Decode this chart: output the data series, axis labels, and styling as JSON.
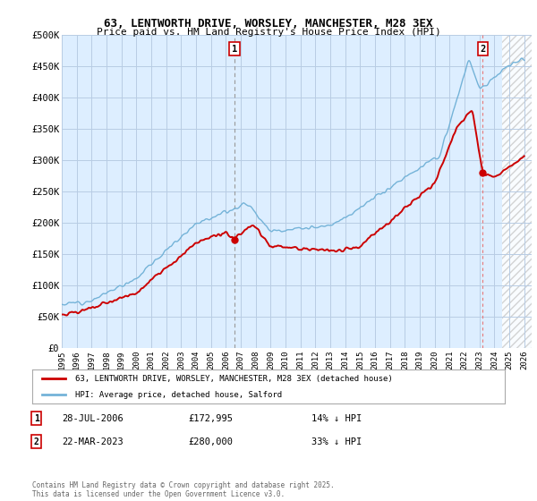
{
  "title": "63, LENTWORTH DRIVE, WORSLEY, MANCHESTER, M28 3EX",
  "subtitle": "Price paid vs. HM Land Registry's House Price Index (HPI)",
  "legend_label_red": "63, LENTWORTH DRIVE, WORSLEY, MANCHESTER, M28 3EX (detached house)",
  "legend_label_blue": "HPI: Average price, detached house, Salford",
  "annotation1_date": "28-JUL-2006",
  "annotation1_price": "£172,995",
  "annotation1_hpi": "14% ↓ HPI",
  "annotation1_year": 2006.57,
  "annotation1_value": 172995,
  "annotation2_date": "22-MAR-2023",
  "annotation2_price": "£280,000",
  "annotation2_hpi": "33% ↓ HPI",
  "annotation2_year": 2023.22,
  "annotation2_value": 280000,
  "hpi_color": "#74b3d8",
  "price_color": "#cc0000",
  "annotation_box_color": "#cc0000",
  "plot_bg_color": "#ddeeff",
  "background_color": "#ffffff",
  "grid_color": "#b8cce4",
  "hatch_color": "#cccccc",
  "ylim": [
    0,
    500000
  ],
  "xlim_start": 1995,
  "xlim_end": 2026.5,
  "hatch_start": 2024.5,
  "footer": "Contains HM Land Registry data © Crown copyright and database right 2025.\nThis data is licensed under the Open Government Licence v3.0.",
  "yticks": [
    0,
    50000,
    100000,
    150000,
    200000,
    250000,
    300000,
    350000,
    400000,
    450000,
    500000
  ],
  "ytick_labels": [
    "£0",
    "£50K",
    "£100K",
    "£150K",
    "£200K",
    "£250K",
    "£300K",
    "£350K",
    "£400K",
    "£450K",
    "£500K"
  ],
  "xticks": [
    1995,
    1996,
    1997,
    1998,
    1999,
    2000,
    2001,
    2002,
    2003,
    2004,
    2005,
    2006,
    2007,
    2008,
    2009,
    2010,
    2011,
    2012,
    2013,
    2014,
    2015,
    2016,
    2017,
    2018,
    2019,
    2020,
    2021,
    2022,
    2023,
    2024,
    2025,
    2026
  ]
}
